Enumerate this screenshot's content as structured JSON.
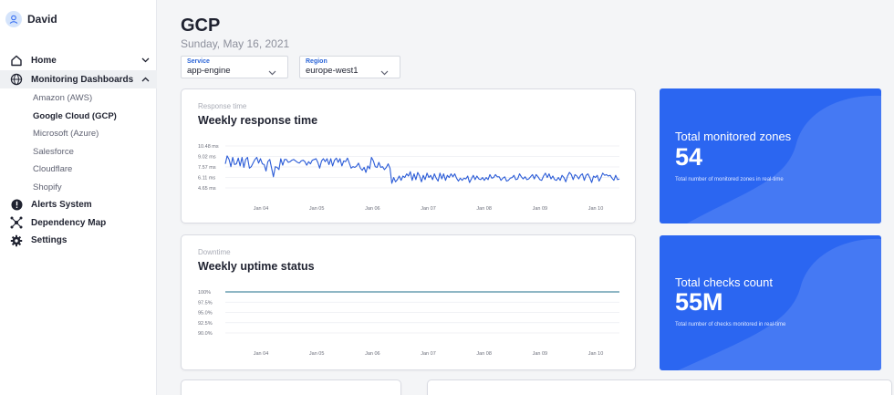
{
  "user": {
    "name": "David",
    "avatar_icon": "user-icon"
  },
  "sidebar": {
    "home": {
      "label": "Home",
      "icon": "home-icon"
    },
    "monitoring": {
      "label": "Monitoring Dashboards",
      "icon": "globe-icon",
      "items": [
        {
          "label": "Amazon (AWS)"
        },
        {
          "label": "Google Cloud (GCP)"
        },
        {
          "label": "Microsoft (Azure)"
        },
        {
          "label": "Salesforce"
        },
        {
          "label": "Cloudflare"
        },
        {
          "label": "Shopify"
        }
      ],
      "current": "Google Cloud (GCP)"
    },
    "alerts": {
      "label": "Alerts System",
      "icon": "alert-icon"
    },
    "dependency": {
      "label": "Dependency Map",
      "icon": "network-icon"
    },
    "settings": {
      "label": "Settings",
      "icon": "gear-icon"
    }
  },
  "page": {
    "title": "GCP",
    "date": "Sunday, May 16, 2021"
  },
  "filters": {
    "service": {
      "label": "Service",
      "value": "app-engine"
    },
    "region": {
      "label": "Region",
      "value": "europe-west1"
    }
  },
  "cards": {
    "response": {
      "subtitle": "Response time",
      "title": "Weekly response time"
    },
    "uptime": {
      "subtitle": "Downtime",
      "title": "Weekly uptime status"
    }
  },
  "stats": {
    "zones": {
      "title": "Total monitored zones",
      "value": "54",
      "description": "Total number of monitored zones in real-time"
    },
    "checks": {
      "title": "Total checks count",
      "value": "55M",
      "description": "Total number of checks monitored in real-time"
    }
  },
  "colors": {
    "accent": "#2b66f1",
    "line": "#2a5bd7",
    "uptime_line": "#1f6f8b",
    "sidebar_active": "#eef0f3"
  },
  "chart_data": [
    {
      "type": "line",
      "title": "Weekly response time",
      "x_tick_labels": [
        "Jan 04",
        "Jan 05",
        "Jan 06",
        "Jan 07",
        "Jan 08",
        "Jan 09",
        "Jan 10"
      ],
      "y_tick_labels": [
        "10.48 ms",
        "9.02 ms",
        "7.57 ms",
        "6.11 ms",
        "4.65 ms"
      ],
      "ylim": [
        4.65,
        10.48
      ],
      "grid": true,
      "series": [
        {
          "values": [
            8.0,
            9.1,
            8.6,
            7.6,
            8.9,
            7.9,
            8.0,
            8.8,
            7.7,
            8.9,
            7.5,
            8.6,
            8.9,
            7.4,
            7.6,
            8.1,
            8.6,
            8.9,
            8.1,
            8.7,
            8.0,
            7.9,
            7.0,
            8.3,
            8.6,
            7.4,
            6.2,
            7.6,
            7.5,
            7.2,
            8.7,
            7.8,
            8.6,
            8.6,
            8.2,
            8.3,
            8.5,
            8.6,
            8.4,
            8.2,
            8.1,
            8.4,
            8.5,
            8.3,
            7.8,
            8.3,
            8.0,
            8.5,
            8.6,
            8.7,
            8.2,
            7.4,
            8.4,
            8.7,
            8.3,
            8.7,
            7.9,
            8.7,
            7.7,
            8.5,
            8.8,
            8.2,
            8.7,
            7.7,
            8.4,
            8.3,
            8.8,
            8.1,
            7.4,
            7.6,
            7.5,
            7.7,
            8.1,
            7.4,
            7.1,
            7.5,
            6.8,
            7.7,
            7.3,
            8.9,
            8.4,
            7.6,
            7.5,
            8.2,
            7.5,
            7.6,
            7.2,
            7.5,
            8.0,
            7.4,
            5.3,
            6.1,
            5.5,
            5.8,
            6.3,
            5.7,
            6.3,
            6.1,
            6.6,
            6.3,
            6.9,
            5.7,
            6.6,
            5.8,
            6.8,
            6.3,
            5.5,
            6.4,
            5.8,
            6.7,
            6.1,
            6.4,
            5.8,
            6.6,
            6.0,
            5.6,
            6.7,
            5.9,
            6.6,
            5.7,
            6.4,
            6.1,
            6.6,
            6.2,
            6.6,
            6.0,
            5.6,
            6.0,
            5.7,
            6.0,
            5.9,
            6.3,
            5.4,
            5.9,
            6.4,
            5.8,
            6.3,
            5.9,
            5.8,
            6.1,
            5.7,
            6.1,
            5.8,
            6.5,
            6.0,
            6.1,
            6.5,
            6.2,
            6.2,
            5.7,
            6.0,
            6.2,
            5.6,
            5.7,
            6.0,
            6.1,
            6.4,
            5.8,
            5.9,
            6.6,
            6.2,
            5.9,
            6.2,
            5.8,
            5.9,
            6.2,
            6.5,
            5.9,
            6.5,
            6.2,
            5.8,
            5.7,
            6.3,
            6.7,
            6.1,
            6.6,
            5.9,
            6.3,
            5.8,
            5.7,
            6.1,
            5.7,
            6.4,
            6.1,
            5.5,
            6.3,
            6.8,
            6.5,
            5.8,
            6.5,
            6.3,
            5.9,
            6.4,
            6.6,
            5.7,
            6.4,
            6.6,
            6.1,
            5.4,
            6.3,
            6.1,
            6.4,
            5.6,
            6.1,
            6.7,
            6.4,
            6.5,
            6.3,
            6.4,
            6.0,
            5.7,
            6.4,
            5.8,
            5.9
          ]
        }
      ]
    },
    {
      "type": "line",
      "title": "Weekly uptime status",
      "x_tick_labels": [
        "Jan 04",
        "Jan 05",
        "Jan 06",
        "Jan 07",
        "Jan 08",
        "Jan 09",
        "Jan 10"
      ],
      "y_tick_labels": [
        "100%",
        "97.5%",
        "95.0%",
        "92.5%",
        "90.0%"
      ],
      "ylim": [
        90,
        100
      ],
      "grid": true,
      "series": [
        {
          "values": [
            100,
            100,
            100,
            100,
            100,
            100,
            100
          ]
        }
      ]
    }
  ]
}
